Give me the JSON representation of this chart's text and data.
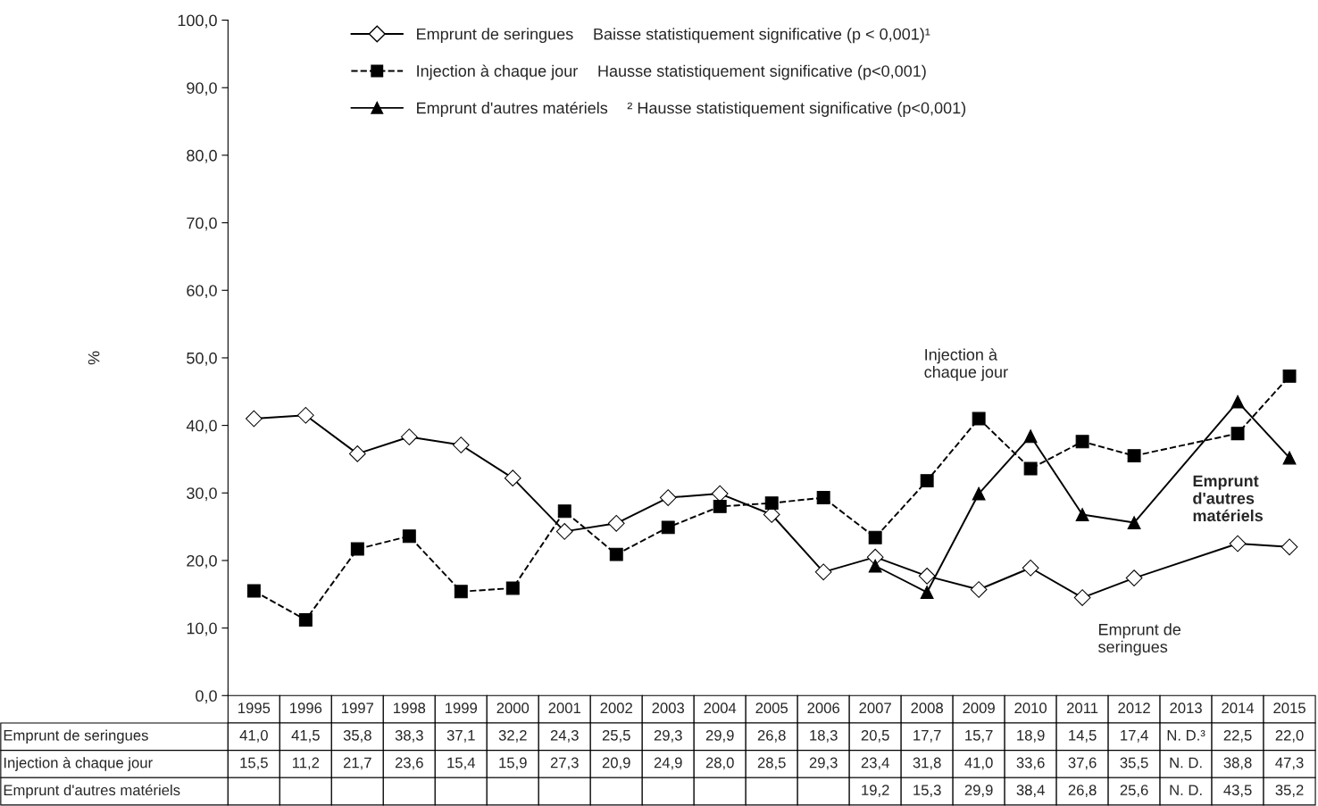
{
  "chart_data": {
    "type": "line",
    "categories": [
      "1995",
      "1996",
      "1997",
      "1998",
      "1999",
      "2000",
      "2001",
      "2002",
      "2003",
      "2004",
      "2005",
      "2006",
      "2007",
      "2008",
      "2009",
      "2010",
      "2011",
      "2012",
      "2013",
      "2014",
      "2015"
    ],
    "ylabel": "%",
    "ylim": [
      0,
      100
    ],
    "yticks": [
      {
        "value": 0,
        "label": "0,0"
      },
      {
        "value": 10,
        "label": "10,0"
      },
      {
        "value": 20,
        "label": "20,0"
      },
      {
        "value": 30,
        "label": "30,0"
      },
      {
        "value": 40,
        "label": "40,0"
      },
      {
        "value": 50,
        "label": "50,0"
      },
      {
        "value": 60,
        "label": "60,0"
      },
      {
        "value": 70,
        "label": "70,0"
      },
      {
        "value": 80,
        "label": "80,0"
      },
      {
        "value": 90,
        "label": "90,0"
      },
      {
        "value": 100,
        "label": "100,0"
      }
    ],
    "grid": false,
    "legend": "top",
    "series": [
      {
        "name": "Emprunt de seringues",
        "color": "#000000",
        "marker": "diamond",
        "line_style": "solid",
        "values": [
          41.0,
          41.5,
          35.8,
          38.3,
          37.1,
          32.2,
          24.3,
          25.5,
          29.3,
          29.9,
          26.8,
          18.3,
          20.5,
          17.7,
          15.7,
          18.9,
          14.5,
          17.4,
          null,
          22.5,
          22.0
        ],
        "value_labels": [
          "41,0",
          "41,5",
          "35,8",
          "38,3",
          "37,1",
          "32,2",
          "24,3",
          "25,5",
          "29,3",
          "29,9",
          "26,8",
          "18,3",
          "20,5",
          "17,7",
          "15,7",
          "18,9",
          "14,5",
          "17,4",
          "N. D.³",
          "22,5",
          "22,0"
        ]
      },
      {
        "name": "Injection à chaque jour",
        "color": "#000000",
        "marker": "square",
        "line_style": "dashed",
        "values": [
          15.5,
          11.2,
          21.7,
          23.6,
          15.4,
          15.9,
          27.3,
          20.9,
          24.9,
          28.0,
          28.5,
          29.3,
          23.4,
          31.8,
          41.0,
          33.6,
          37.6,
          35.5,
          null,
          38.8,
          47.3
        ],
        "value_labels": [
          "15,5",
          "11,2",
          "21,7",
          "23,6",
          "15,4",
          "15,9",
          "27,3",
          "20,9",
          "24,9",
          "28,0",
          "28,5",
          "29,3",
          "23,4",
          "31,8",
          "41,0",
          "33,6",
          "37,6",
          "35,5",
          "N. D.",
          "38,8",
          "47,3"
        ]
      },
      {
        "name": "Emprunt d'autres matériels",
        "color": "#000000",
        "marker": "triangle",
        "line_style": "solid",
        "values": [
          null,
          null,
          null,
          null,
          null,
          null,
          null,
          null,
          null,
          null,
          null,
          null,
          19.2,
          15.3,
          29.9,
          38.4,
          26.8,
          25.6,
          null,
          43.5,
          35.2
        ],
        "value_labels": [
          null,
          null,
          null,
          null,
          null,
          null,
          null,
          null,
          null,
          null,
          null,
          null,
          "19,2",
          "15,3",
          "29,9",
          "38,4",
          "26,8",
          "25,6",
          "N. D.",
          "43,5",
          "35,2"
        ]
      }
    ],
    "annotations": [
      "Baisse statistiquement significative (p < 0,001)¹",
      "Hausse statistiquement significative (p<0,001)",
      "² Hausse statistiquement significative (p<0,001)",
      "Injection à\nchaque jour",
      "Emprunt\nd'autres\nmatériels",
      "Emprunt de\nseringues"
    ]
  }
}
